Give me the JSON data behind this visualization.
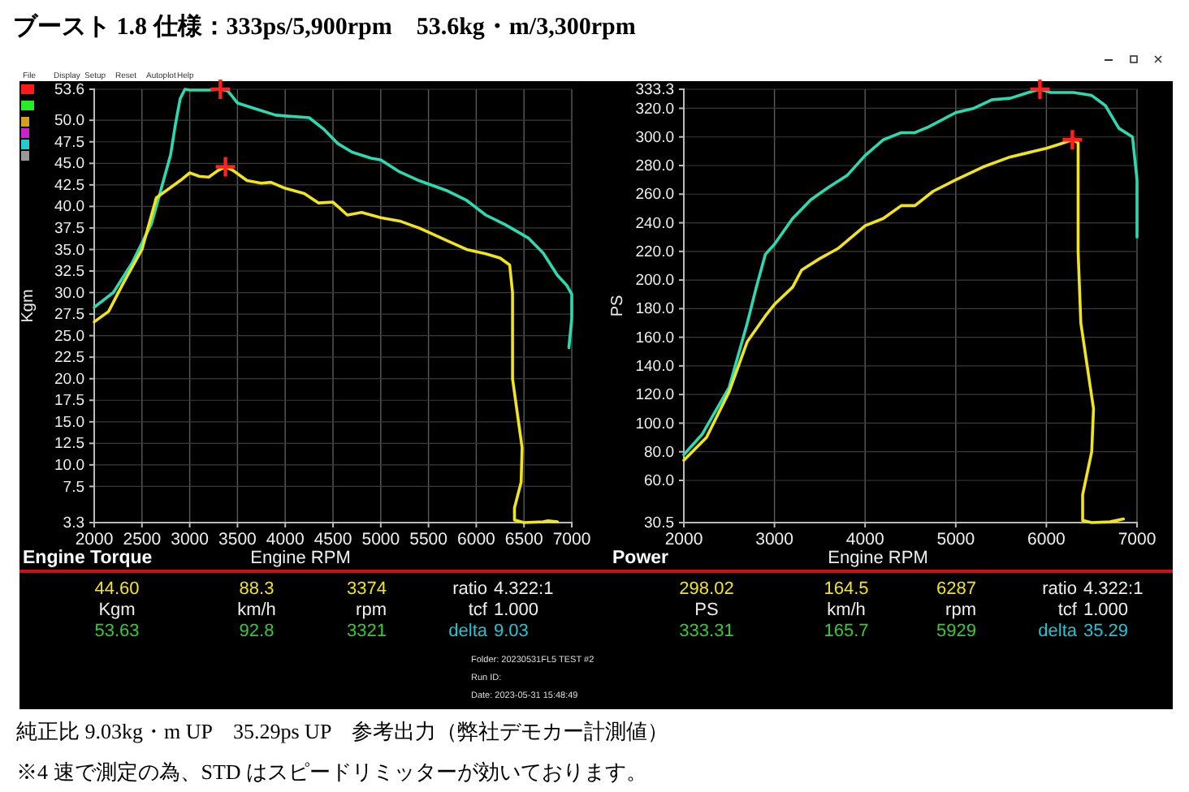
{
  "chart_data": [
    {
      "type": "line",
      "title": "Engine Torque",
      "xlabel": "Engine RPM",
      "ylabel": "Kgm",
      "grid": true,
      "xlim": [
        2000,
        7000
      ],
      "xticks": [
        2000,
        2500,
        3000,
        3500,
        4000,
        4500,
        5000,
        5500,
        6000,
        6500,
        7000
      ],
      "ylim": [
        3.3,
        53.6
      ],
      "yticks": [
        3.3,
        7.5,
        {
          "value": 10,
          "label": "10.0"
        },
        12.5,
        {
          "value": 15,
          "label": "15.0"
        },
        17.5,
        {
          "value": 20,
          "label": "20.0"
        },
        22.5,
        {
          "value": 25,
          "label": "25.0"
        },
        27.5,
        {
          "value": 30,
          "label": "30.0"
        },
        32.5,
        {
          "value": 35,
          "label": "35.0"
        },
        37.5,
        {
          "value": 40,
          "label": "40.0"
        },
        42.5,
        {
          "value": 45,
          "label": "45.0"
        },
        47.5,
        {
          "value": 50,
          "label": "50.0"
        },
        53.6
      ],
      "series": [
        {
          "color": "#2fd9b0",
          "x": [
            2000,
            2200,
            2400,
            2600,
            2700,
            2800,
            2850,
            2900,
            2950,
            3000,
            3200,
            3321,
            3400,
            3500,
            3700,
            3900,
            4000,
            4250,
            4400,
            4550,
            4700,
            4900,
            5000,
            5200,
            5400,
            5700,
            5900,
            6100,
            6300,
            6550,
            6700,
            6850,
            6950,
            7000,
            7000,
            6970
          ],
          "values": [
            28.3,
            30,
            33.5,
            38,
            42,
            46,
            49.5,
            52.5,
            53.6,
            53.5,
            53.5,
            53.6,
            53.4,
            52,
            51.3,
            50.6,
            50.5,
            50.3,
            49,
            47.3,
            46.3,
            45.6,
            45.4,
            44,
            43,
            41.8,
            40.7,
            39,
            37.9,
            36.3,
            34.6,
            32,
            30.8,
            29.8,
            27,
            23.6
          ]
        },
        {
          "color": "#f0e41e",
          "x": [
            2000,
            2150,
            2300,
            2500,
            2650,
            2750,
            2900,
            3000,
            3100,
            3200,
            3300,
            3374,
            3450,
            3600,
            3750,
            3850,
            4000,
            4200,
            4350,
            4500,
            4650,
            4800,
            5000,
            5200,
            5400,
            5500,
            5700,
            5900,
            6100,
            6250,
            6350,
            6380,
            6380,
            6430,
            6480,
            6470,
            6400,
            6400,
            6500,
            6700,
            6750,
            6850
          ],
          "values": [
            26.6,
            27.8,
            31,
            35,
            41,
            41.8,
            43,
            43.9,
            43.5,
            43.4,
            44.2,
            44.6,
            44.2,
            43,
            42.7,
            42.8,
            42.1,
            41.5,
            40.4,
            40.5,
            39,
            39.3,
            38.7,
            38.3,
            37.5,
            37,
            36,
            35,
            34.5,
            34,
            33.2,
            30,
            20,
            16,
            12,
            8,
            5,
            3.6,
            3.3,
            3.4,
            3.5,
            3.4
          ]
        },
        {
          "type": "scatter",
          "marker": "cross",
          "color": "#ff2020",
          "x": [
            3321,
            3374
          ],
          "values": [
            53.6,
            44.6
          ]
        }
      ],
      "annotations": [
        "44.60",
        "88.3",
        "3374",
        "ratio  4.322:1",
        "Kgm",
        "km/h",
        "rpm",
        "tcf  1.000",
        "53.63",
        "92.8",
        "3321",
        "delta  9.03"
      ]
    },
    {
      "type": "line",
      "title": "Power",
      "xlabel": "Engine RPM",
      "ylabel": "PS",
      "grid": true,
      "xlim": [
        2000,
        7000
      ],
      "xticks": [
        2000,
        3000,
        4000,
        5000,
        6000,
        7000
      ],
      "ylim": [
        30.5,
        333.3
      ],
      "yticks": [
        30.5,
        {
          "value": 60,
          "label": "60.0"
        },
        {
          "value": 80,
          "label": "80.0"
        },
        {
          "value": 100,
          "label": "100.0"
        },
        {
          "value": 120,
          "label": "120.0"
        },
        {
          "value": 140,
          "label": "140.0"
        },
        {
          "value": 160,
          "label": "160.0"
        },
        {
          "value": 180,
          "label": "180.0"
        },
        {
          "value": 200,
          "label": "200.0"
        },
        {
          "value": 220,
          "label": "220.0"
        },
        {
          "value": 240,
          "label": "240.0"
        },
        {
          "value": 260,
          "label": "260.0"
        },
        {
          "value": 280,
          "label": "280.0"
        },
        {
          "value": 300,
          "label": "300.0"
        },
        {
          "value": 320,
          "label": "320.0"
        },
        333.3
      ],
      "series": [
        {
          "color": "#2fd9b0",
          "x": [
            2000,
            2200,
            2500,
            2700,
            2800,
            2900,
            3000,
            3200,
            3400,
            3600,
            3800,
            4000,
            4200,
            4400,
            4550,
            4700,
            5000,
            5200,
            5400,
            5600,
            5800,
            5929,
            6050,
            6300,
            6500,
            6650,
            6800,
            6950,
            7000,
            7000
          ],
          "values": [
            78,
            92,
            125,
            170,
            195,
            218,
            225,
            243,
            256,
            265,
            273,
            287,
            298,
            303,
            303,
            307,
            317,
            320,
            326,
            327,
            331,
            333.3,
            331,
            331,
            329,
            322,
            306,
            300,
            270,
            230
          ]
        },
        {
          "color": "#f0e41e",
          "x": [
            2000,
            2250,
            2500,
            2700,
            2900,
            3000,
            3200,
            3300,
            3500,
            3700,
            4000,
            4200,
            4400,
            4550,
            4750,
            5000,
            5300,
            5600,
            5800,
            6000,
            6150,
            6287,
            6350,
            6350,
            6380,
            6450,
            6520,
            6500,
            6400,
            6400,
            6500,
            6700,
            6850
          ],
          "values": [
            74,
            90,
            122,
            157,
            175,
            183,
            195,
            207,
            215,
            222,
            238,
            243,
            252,
            252,
            262,
            270,
            279,
            286,
            289,
            292,
            295,
            298,
            296,
            220,
            170,
            140,
            110,
            80,
            50,
            32,
            30.5,
            31,
            33
          ]
        },
        {
          "type": "scatter",
          "marker": "cross",
          "color": "#ff2020",
          "x": [
            5929,
            6287
          ],
          "values": [
            333.3,
            298
          ]
        }
      ],
      "annotations": [
        "298.02",
        "164.5",
        "6287",
        "ratio  4.322:1",
        "PS",
        "km/h",
        "rpm",
        "tcf  1.000",
        "333.31",
        "165.7",
        "5929",
        "delta  35.29"
      ]
    },
    {
      "type": "other",
      "title": "ブースト 1.8 仕様：333ps/5,900rpm　53.6kg・m/3,300rpm",
      "annotations": [
        "純正比 9.03kg・m UP　35.29ps UP　参考出力（弊社デモカー計測値）",
        "※4 速で測定の為、STD はスピードリミッターが効いております。",
        "Folder:  20230531FL5 TEST #2",
        "Run ID:",
        "Date:  2023-05-31 15:48:49",
        "File",
        "Display",
        "Setup",
        "Reset",
        "Autoplot",
        "Help"
      ]
    }
  ]
}
